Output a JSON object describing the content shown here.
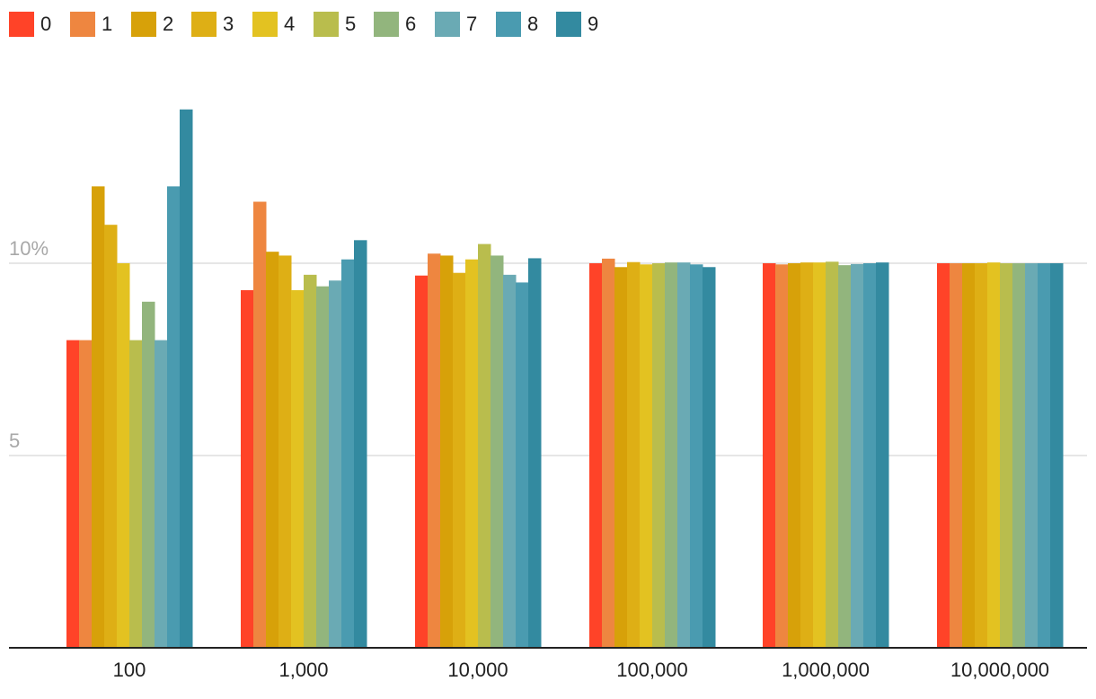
{
  "chart_data": {
    "type": "bar",
    "categories": [
      "100",
      "1,000",
      "10,000",
      "100,000",
      "1,000,000",
      "10,000,000"
    ],
    "series": [
      {
        "name": "0",
        "color": "#FF4328",
        "values": [
          8.0,
          9.3,
          9.68,
          10.0,
          10.0,
          10.0
        ]
      },
      {
        "name": "1",
        "color": "#EE8640",
        "values": [
          8.0,
          11.6,
          10.25,
          10.12,
          9.97,
          10.0
        ]
      },
      {
        "name": "2",
        "color": "#D7A109",
        "values": [
          12.0,
          10.3,
          10.2,
          9.9,
          10.0,
          10.0
        ]
      },
      {
        "name": "3",
        "color": "#DEAF15",
        "values": [
          11.0,
          10.2,
          9.75,
          10.03,
          10.02,
          10.0
        ]
      },
      {
        "name": "4",
        "color": "#E3C221",
        "values": [
          10.0,
          9.3,
          10.1,
          9.97,
          10.02,
          10.02
        ]
      },
      {
        "name": "5",
        "color": "#B9BD4D",
        "values": [
          8.0,
          9.7,
          10.5,
          10.0,
          10.04,
          10.0
        ]
      },
      {
        "name": "6",
        "color": "#92B57D",
        "values": [
          9.0,
          9.4,
          10.2,
          10.02,
          9.95,
          10.0
        ]
      },
      {
        "name": "7",
        "color": "#6AAAB4",
        "values": [
          8.0,
          9.55,
          9.7,
          10.02,
          9.98,
          10.0
        ]
      },
      {
        "name": "8",
        "color": "#4A9BB0",
        "values": [
          12.0,
          10.1,
          9.5,
          9.97,
          10.0,
          10.0
        ]
      },
      {
        "name": "9",
        "color": "#338AA0",
        "values": [
          14.0,
          10.6,
          10.13,
          9.9,
          10.02,
          10.0
        ]
      }
    ],
    "yticks": [
      {
        "value": 5,
        "label": "5"
      },
      {
        "value": 10,
        "label": "10%"
      }
    ],
    "ylim": [
      0,
      15
    ],
    "title": "",
    "xlabel": "",
    "ylabel": "",
    "legend_position": "top-left",
    "grid": true
  }
}
